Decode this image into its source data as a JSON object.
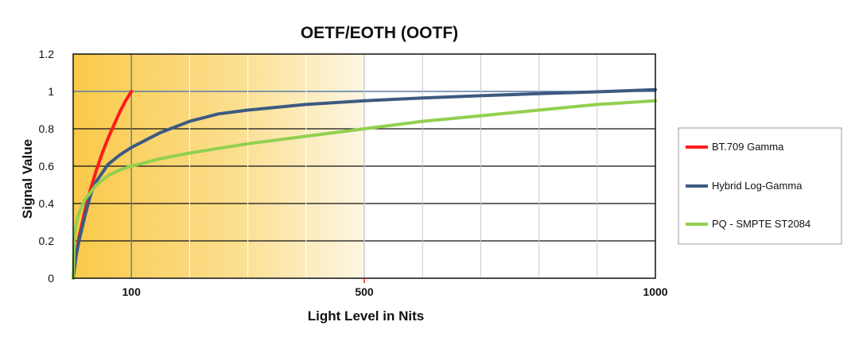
{
  "chart_data": {
    "type": "line",
    "title": "OETF/EOTH  (OOTF)",
    "xlabel": "Light Level in Nits",
    "ylabel": "Signal Value",
    "xlim": [
      0,
      1000
    ],
    "ylim": [
      0,
      1.2
    ],
    "x_tick_labels": [
      {
        "value": 100,
        "label": "100"
      },
      {
        "value": 500,
        "label": "500"
      },
      {
        "value": 1000,
        "label": "1000"
      }
    ],
    "y_tick_labels": [
      "0",
      "0.2",
      "0.4",
      "0.6",
      "0.8",
      "1",
      "1.2"
    ],
    "y_ticks": [
      0,
      0.2,
      0.4,
      0.6,
      0.8,
      1.0,
      1.2
    ],
    "x_gridlines": [
      100,
      200,
      300,
      400,
      500,
      600,
      700,
      800,
      900
    ],
    "highlight_range": [
      0,
      500
    ],
    "grid": true,
    "legend_position": "right",
    "series": [
      {
        "name": "BT.709 Gamma",
        "color": "#ff1a1a",
        "x": [
          0,
          5,
          10,
          20,
          30,
          40,
          50,
          60,
          70,
          80,
          90,
          100
        ],
        "y": [
          0,
          0.12,
          0.22,
          0.36,
          0.48,
          0.58,
          0.67,
          0.75,
          0.82,
          0.89,
          0.95,
          1.0
        ]
      },
      {
        "name": "Hybrid Log-Gamma",
        "color": "#3d5a80",
        "x": [
          0,
          5,
          10,
          20,
          30,
          40,
          60,
          80,
          100,
          150,
          200,
          250,
          300,
          400,
          500,
          600,
          700,
          800,
          900,
          1000
        ],
        "y": [
          0,
          0.12,
          0.2,
          0.33,
          0.45,
          0.52,
          0.61,
          0.66,
          0.7,
          0.78,
          0.84,
          0.88,
          0.9,
          0.93,
          0.95,
          0.965,
          0.977,
          0.988,
          0.998,
          1.01
        ]
      },
      {
        "name": "PQ - SMPTE ST2084",
        "color": "#92d050",
        "x": [
          0,
          2,
          5,
          10,
          20,
          30,
          40,
          60,
          80,
          100,
          150,
          200,
          300,
          400,
          500,
          600,
          700,
          800,
          900,
          1000
        ],
        "y": [
          0.0,
          0.22,
          0.29,
          0.35,
          0.42,
          0.46,
          0.5,
          0.55,
          0.58,
          0.6,
          0.64,
          0.67,
          0.72,
          0.76,
          0.8,
          0.84,
          0.87,
          0.9,
          0.93,
          0.95
        ]
      }
    ]
  }
}
